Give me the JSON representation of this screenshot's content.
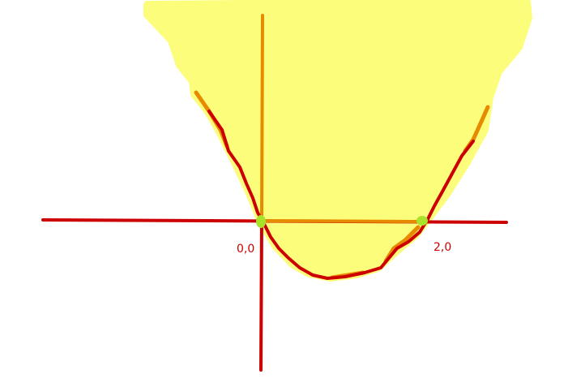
{
  "labels": {
    "origin": "0,0",
    "root": "2,0"
  },
  "colors": {
    "background": "#ffffff",
    "shade": "#fdfd7c",
    "axis": "#cc0000",
    "highlight": "#e68a00",
    "curve": "#cc0000",
    "point": "#a9e22b",
    "label": "#cc0000"
  }
}
